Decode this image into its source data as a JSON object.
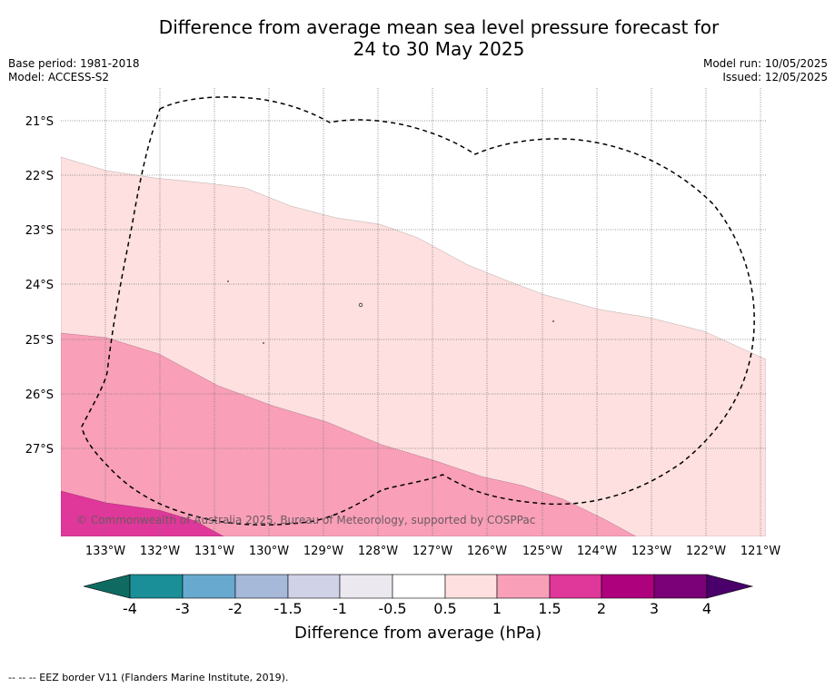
{
  "title": {
    "line1": "Difference from average mean sea level pressure forecast for",
    "line2": "24 to 30 May 2025"
  },
  "meta_left": {
    "base_period": "Base period: 1981-2018",
    "model": "Model: ACCESS-S2"
  },
  "meta_right": {
    "model_run": "Model run: 10/05/2025",
    "issued": "Issued: 12/05/2025"
  },
  "map": {
    "latitude_labels": [
      "21°S",
      "22°S",
      "23°S",
      "24°S",
      "25°S",
      "26°S",
      "27°S"
    ],
    "longitude_labels": [
      "133°W",
      "132°W",
      "131°W",
      "130°W",
      "129°W",
      "128°W",
      "127°W",
      "126°W",
      "125°W",
      "124°W",
      "123°W",
      "122°W",
      "121°W"
    ],
    "copyright": "© Commonwealth of Australia 2025, Bureau of Meteorology, supported by COSPPac",
    "boundary_style": "dashed EEZ border"
  },
  "legend": {
    "tick_labels": [
      "-4",
      "-3",
      "-2",
      "-1.5",
      "-1",
      "-0.5",
      "0.5",
      "1",
      "1.5",
      "2",
      "3",
      "4"
    ],
    "colors": [
      "#0f6b62",
      "#1b8f98",
      "#68a9cf",
      "#a6b9d8",
      "#d0d2e7",
      "#ebe9ef",
      "#ffffff",
      "#fde0df",
      "#f99fb8",
      "#e0379a",
      "#ae017e",
      "#7a0177",
      "#49006a"
    ],
    "label": "Difference from average (hPa)"
  },
  "footer": {
    "note": "--  --  -- EEZ border V11 (Flanders Marine Institute, 2019)."
  }
}
